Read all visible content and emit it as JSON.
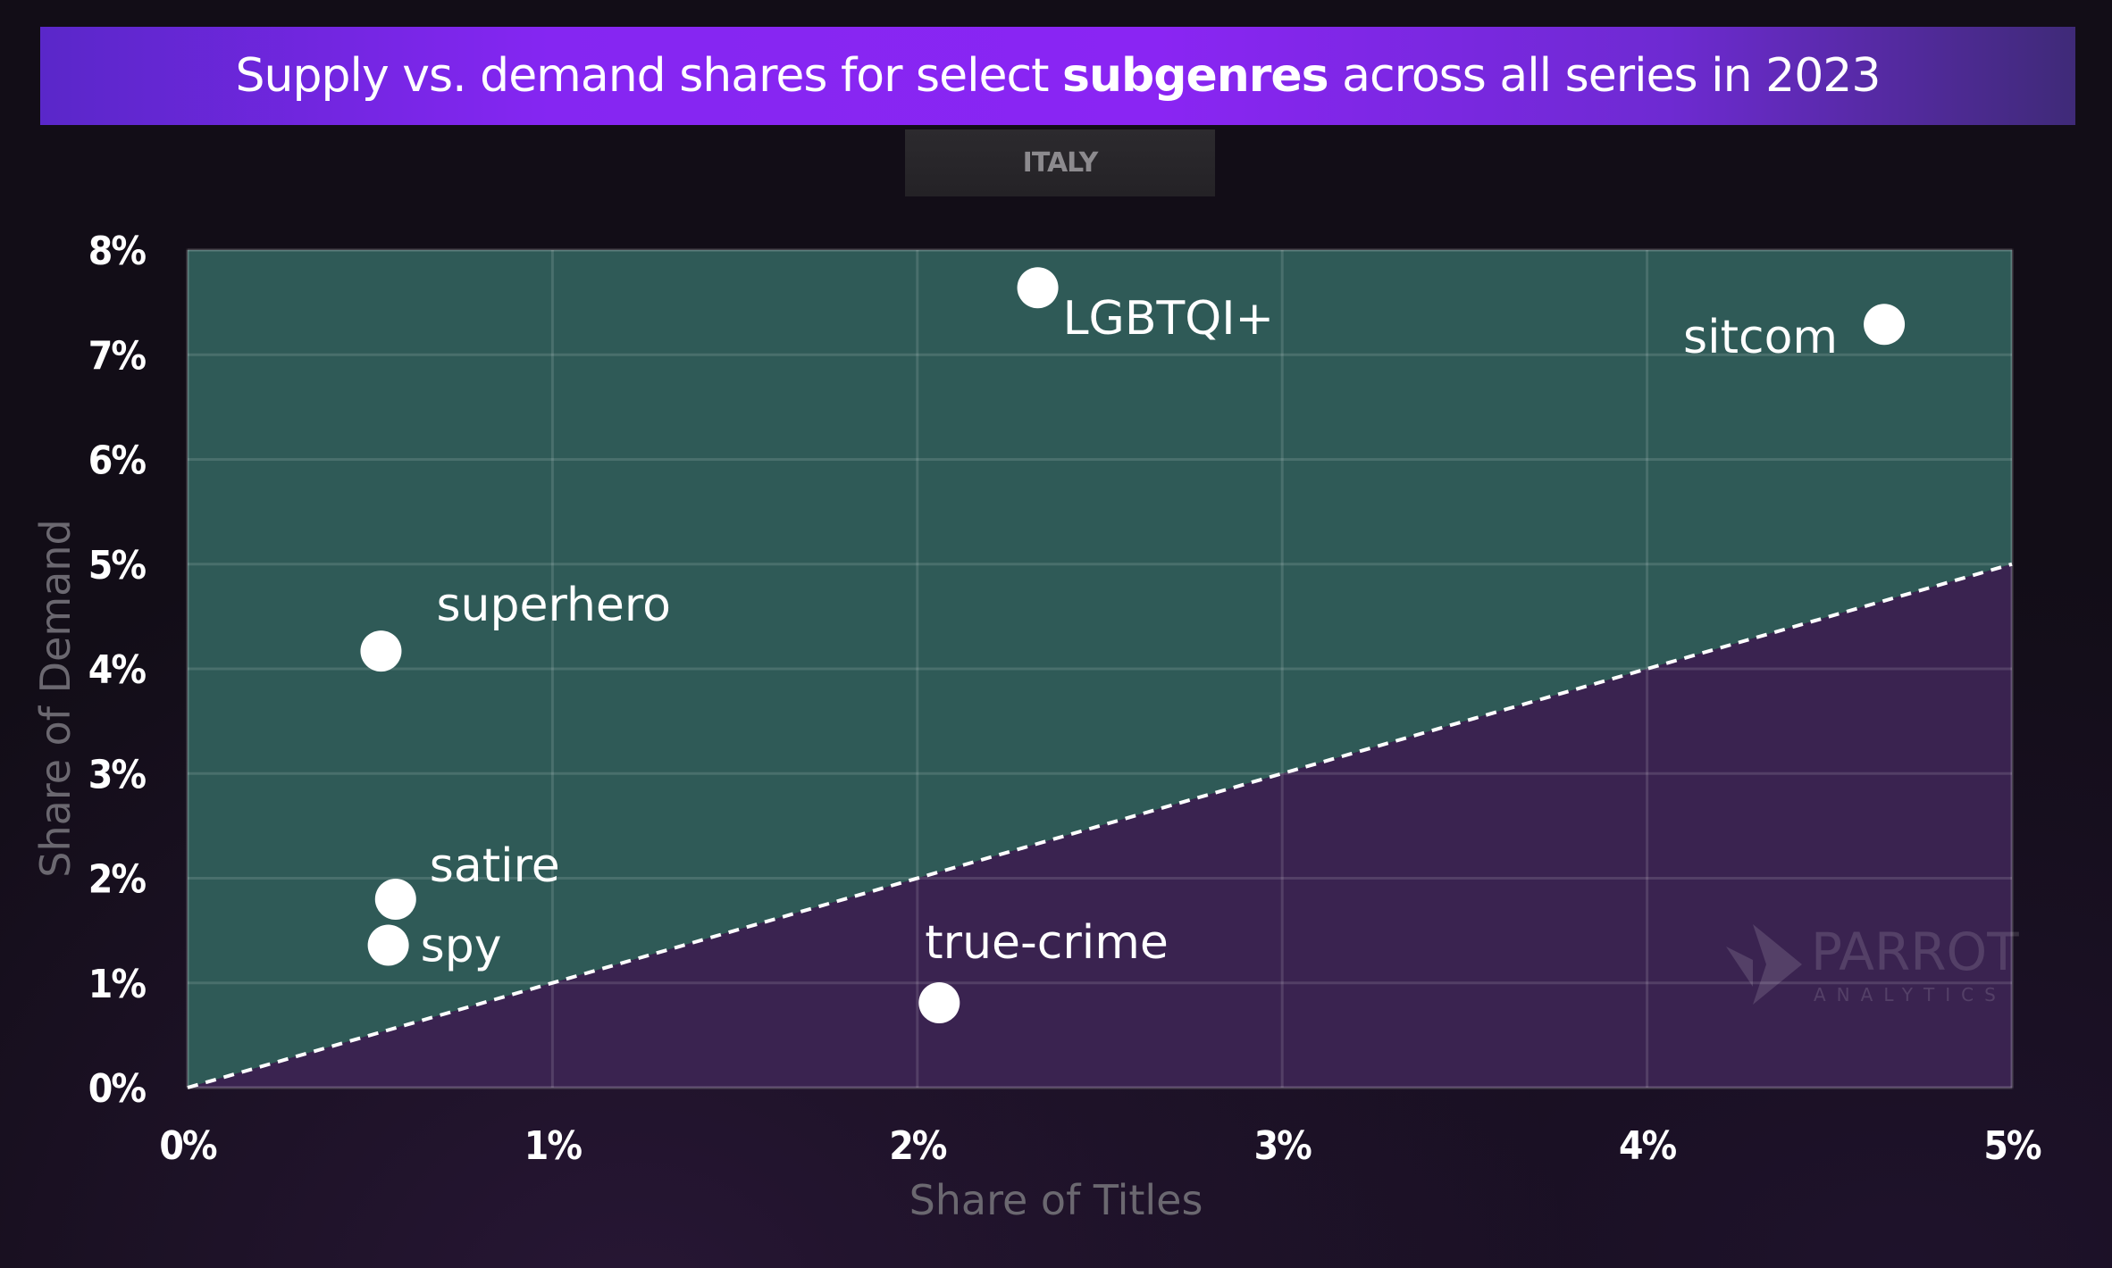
{
  "header": {
    "title_before": "Supply vs. demand shares for select ",
    "title_bold": "subgenres",
    "title_after": " across all series in 2023",
    "country": "ITALY"
  },
  "watermark": {
    "brand": "PARROT",
    "sub": "ANALYTICS"
  },
  "colors": {
    "above_parity_region": "#2f5a57",
    "below_parity_region": "#3a2350",
    "points": "#ffffff",
    "banner": "#8526f2"
  },
  "chart_data": {
    "type": "scatter",
    "title": "Supply vs. demand shares for select subgenres across all series in 2023",
    "subtitle": "ITALY",
    "xlabel": "Share of Titles",
    "ylabel": "Share of Demand",
    "xlim": [
      0,
      5
    ],
    "ylim": [
      0,
      8
    ],
    "x_unit": "%",
    "y_unit": "%",
    "x_ticks": [
      "0%",
      "1%",
      "2%",
      "3%",
      "4%",
      "5%"
    ],
    "y_ticks": [
      "0%",
      "1%",
      "2%",
      "3%",
      "4%",
      "5%",
      "6%",
      "7%",
      "8%"
    ],
    "grid": true,
    "reference_line": {
      "style": "dashed",
      "from": [
        0,
        0
      ],
      "to": [
        5,
        5
      ]
    },
    "points": [
      {
        "label": "LGBTQI+",
        "x": 2.33,
        "y": 7.64
      },
      {
        "label": "sitcom",
        "x": 4.65,
        "y": 7.29
      },
      {
        "label": "superhero",
        "x": 0.53,
        "y": 4.17
      },
      {
        "label": "satire",
        "x": 0.57,
        "y": 1.8
      },
      {
        "label": "spy",
        "x": 0.55,
        "y": 1.36
      },
      {
        "label": "true-crime",
        "x": 2.06,
        "y": 0.81
      }
    ]
  }
}
